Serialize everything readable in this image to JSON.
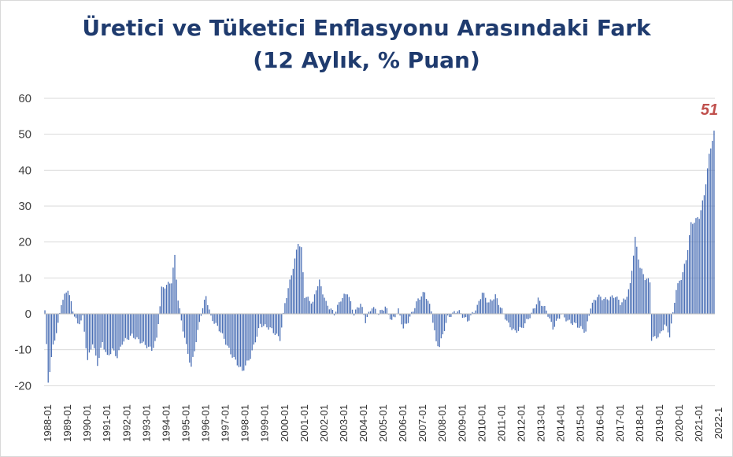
{
  "colors": {
    "bar": "#4a6fb5",
    "bar_dark": "#1f3b6e",
    "grid": "#d9d9d9",
    "title": "#1f3b6e",
    "callout": "#c0504d"
  },
  "chart_data": {
    "type": "bar",
    "title": "Üretici ve Tüketici Enflasyonu Arasındaki Fark",
    "subtitle": "(12 Aylık, % Puan)",
    "xlabel": "",
    "ylabel": "",
    "ylim": [
      -20,
      60
    ],
    "yticks": [
      "60",
      "50",
      "40",
      "30",
      "20",
      "10",
      "0",
      "-10",
      "-20"
    ],
    "grid": true,
    "legend": "none",
    "x_tick_labels": [
      "1988-01",
      "1989-01",
      "1990-01",
      "1991-01",
      "1992-01",
      "1993-01",
      "1994-01",
      "1995-01",
      "1996-01",
      "1997-01",
      "1998-01",
      "1999-01",
      "2000-01",
      "2001-01",
      "2002-01",
      "2003-01",
      "2004-01",
      "2005-01",
      "2006-01",
      "2007-01",
      "2008-01",
      "2009-01",
      "2010-01",
      "2011-01",
      "2012-01",
      "2013-01",
      "2014-01",
      "2015-01",
      "2016-01",
      "2017-01",
      "2018-01",
      "2019-01",
      "2020-01",
      "2021-01",
      "2022-1"
    ],
    "annotation": "51",
    "series_keyframes": {
      "note_units": "% puan; monthly values between keyframes are interpolated",
      "points": [
        [
          "1988-01",
          1
        ],
        [
          "1988-03",
          -19
        ],
        [
          "1988-06",
          -9
        ],
        [
          "1988-09",
          -3
        ],
        [
          "1988-11",
          3
        ],
        [
          "1989-03",
          7
        ],
        [
          "1989-06",
          1
        ],
        [
          "1989-09",
          -3
        ],
        [
          "1989-12",
          -1
        ],
        [
          "1990-03",
          -13
        ],
        [
          "1990-06",
          -8
        ],
        [
          "1990-09",
          -14
        ],
        [
          "1990-12",
          -8
        ],
        [
          "1991-03",
          -12
        ],
        [
          "1991-06",
          -10
        ],
        [
          "1991-09",
          -12
        ],
        [
          "1991-12",
          -8
        ],
        [
          "1992-06",
          -6
        ],
        [
          "1992-12",
          -8
        ],
        [
          "1993-06",
          -10
        ],
        [
          "1993-09",
          -7
        ],
        [
          "1993-12",
          7
        ],
        [
          "1994-06",
          9
        ],
        [
          "1994-08",
          16
        ],
        [
          "1994-10",
          4
        ],
        [
          "1994-12",
          -2
        ],
        [
          "1995-03",
          -9
        ],
        [
          "1995-06",
          -15
        ],
        [
          "1995-12",
          0
        ],
        [
          "1996-03",
          5
        ],
        [
          "1996-06",
          -1
        ],
        [
          "1996-12",
          -5
        ],
        [
          "1997-06",
          -11
        ],
        [
          "1998-01",
          -16
        ],
        [
          "1998-06",
          -12
        ],
        [
          "1998-12",
          -3
        ],
        [
          "1999-06",
          -4
        ],
        [
          "1999-12",
          -7
        ],
        [
          "2000-03",
          3
        ],
        [
          "2000-09",
          15
        ],
        [
          "2000-11",
          20
        ],
        [
          "2001-01",
          18
        ],
        [
          "2001-03",
          5
        ],
        [
          "2001-08",
          3
        ],
        [
          "2001-10",
          7
        ],
        [
          "2001-12",
          9
        ],
        [
          "2002-04",
          3
        ],
        [
          "2002-09",
          0
        ],
        [
          "2003-01",
          4
        ],
        [
          "2003-05",
          6
        ],
        [
          "2003-09",
          0
        ],
        [
          "2004-01",
          3
        ],
        [
          "2004-04",
          -2
        ],
        [
          "2004-08",
          2
        ],
        [
          "2004-12",
          0
        ],
        [
          "2005-04",
          2
        ],
        [
          "2005-08",
          -2
        ],
        [
          "2005-12",
          1
        ],
        [
          "2006-03",
          -4
        ],
        [
          "2006-06",
          -2
        ],
        [
          "2006-12",
          4
        ],
        [
          "2007-04",
          6
        ],
        [
          "2007-08",
          1
        ],
        [
          "2007-11",
          -8
        ],
        [
          "2008-01",
          -9
        ],
        [
          "2008-06",
          -1
        ],
        [
          "2008-12",
          1
        ],
        [
          "2009-06",
          -2
        ],
        [
          "2009-12",
          2
        ],
        [
          "2010-03",
          6
        ],
        [
          "2010-07",
          3
        ],
        [
          "2010-11",
          5
        ],
        [
          "2011-03",
          1
        ],
        [
          "2011-07",
          -3
        ],
        [
          "2011-11",
          -5
        ],
        [
          "2012-03",
          -4
        ],
        [
          "2012-09",
          0
        ],
        [
          "2013-01",
          4
        ],
        [
          "2013-06",
          1
        ],
        [
          "2013-10",
          -4
        ],
        [
          "2014-03",
          0
        ],
        [
          "2014-07",
          -2
        ],
        [
          "2014-12",
          -3
        ],
        [
          "2015-06",
          -5
        ],
        [
          "2015-09",
          2
        ],
        [
          "2016-01",
          5
        ],
        [
          "2016-06",
          4
        ],
        [
          "2016-12",
          5
        ],
        [
          "2017-03",
          3
        ],
        [
          "2017-06",
          4
        ],
        [
          "2017-09",
          8
        ],
        [
          "2017-12",
          21
        ],
        [
          "2018-03",
          13
        ],
        [
          "2018-06",
          10
        ],
        [
          "2018-09",
          9
        ],
        [
          "2018-10",
          -7
        ],
        [
          "2019-03",
          -6
        ],
        [
          "2019-06",
          -3
        ],
        [
          "2019-09",
          -6
        ],
        [
          "2019-11",
          0
        ],
        [
          "2020-01",
          7
        ],
        [
          "2020-04",
          10
        ],
        [
          "2020-07",
          15
        ],
        [
          "2020-10",
          25
        ],
        [
          "2021-03",
          27
        ],
        [
          "2021-06",
          33
        ],
        [
          "2021-09",
          44
        ],
        [
          "2021-12",
          51
        ]
      ]
    }
  }
}
